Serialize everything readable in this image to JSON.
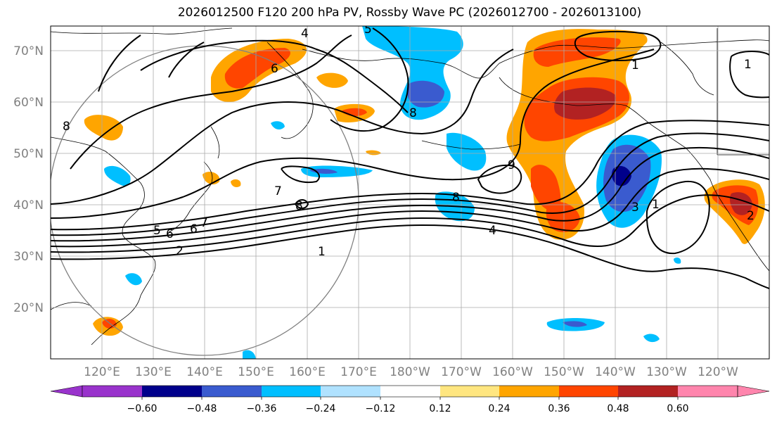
{
  "title": "2026012500 F120 200 hPa PV, Rossby Wave PC (2026012700 - 2026013100)",
  "lat_labels": [
    "70°N",
    "60°N",
    "50°N",
    "40°N",
    "30°N",
    "20°N"
  ],
  "lon_labels": [
    "120°E",
    "130°E",
    "140°E",
    "150°E",
    "160°E",
    "170°E",
    "180°W",
    "170°W",
    "160°W",
    "150°W",
    "140°W",
    "130°W",
    "120°W"
  ],
  "colorbar": {
    "colors": [
      "#9933cc",
      "#00008b",
      "#3a5bcf",
      "#00bfff",
      "#b0e2ff",
      "#ffffff",
      "#ffe680",
      "#ffa500",
      "#ff4500",
      "#b22222",
      "#ff85ad"
    ],
    "tick_labels": [
      "−0.60",
      "−0.48",
      "−0.36",
      "−0.24",
      "−0.12",
      "0.12",
      "0.24",
      "0.36",
      "0.48",
      "0.60"
    ]
  },
  "contour_labels": [
    "4",
    "5",
    "6",
    "6",
    "8",
    "8",
    "8",
    "8",
    "9",
    "7",
    "1",
    "2",
    "5",
    "6",
    "7",
    "4",
    "1",
    "3",
    "2",
    "1",
    "1"
  ]
}
